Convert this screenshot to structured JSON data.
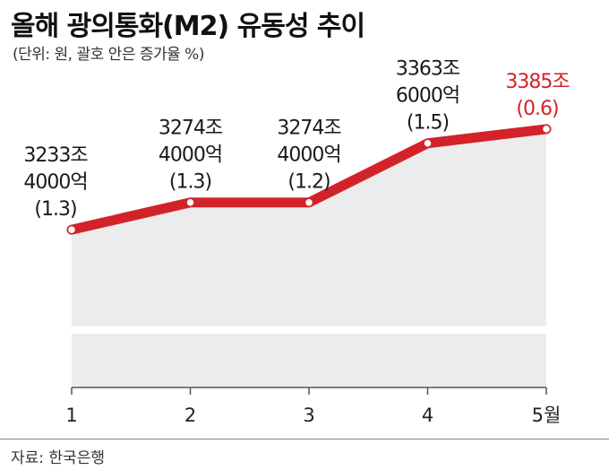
{
  "title": "올해 광의통화(M2) 유동성 추이",
  "subtitle": "(단위: 원, 괄호 안은 증가율 %)",
  "source": "자료: 한국은행",
  "colors": {
    "line": "#d2232a",
    "area": "#ececec",
    "highlight": "#d2232a",
    "text": "#1a1a1a"
  },
  "chart_data": {
    "type": "line",
    "categories": [
      "1",
      "2",
      "3",
      "4",
      "5월"
    ],
    "values": [
      3233.4,
      3274.4,
      3274.4,
      3363.6,
      3385
    ],
    "growth": [
      1.3,
      1.3,
      1.2,
      1.5,
      0.6
    ],
    "labels": [
      [
        "3233조",
        "4000억",
        "(1.3)"
      ],
      [
        "3274조",
        "4000억",
        "(1.3)"
      ],
      [
        "3274조",
        "4000억",
        "(1.2)"
      ],
      [
        "3363조",
        "6000억",
        "(1.5)"
      ],
      [
        "3385조",
        "(0.6)"
      ]
    ],
    "highlight_index": 4,
    "ylim": [
      3120,
      3420
    ],
    "xlabel": "",
    "ylabel": "",
    "grid": false
  }
}
